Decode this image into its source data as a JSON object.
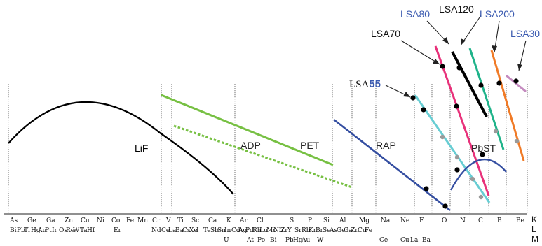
{
  "crystal_labels": {
    "lif": "LiF",
    "adp": "ADP",
    "pet": "PET",
    "rap": "RAP",
    "pbst": "PbST",
    "lsa55_prefix": "LSA",
    "lsa55_suffix": "55",
    "lsa70": "LSA70",
    "lsa80": "LSA80",
    "lsa120": "LSA120",
    "lsa200": "LSA200",
    "lsa30": "LSA30"
  },
  "line_labels": [
    "K",
    "L",
    "M"
  ],
  "row1": [
    "As",
    "Ge",
    "Ga",
    "Zn",
    "Cu",
    "Ni",
    "Co",
    "Fe",
    "Mn",
    "Cr",
    "V",
    "Ti",
    "Sc",
    "Ca",
    "K",
    "Ar",
    "Cl",
    "S",
    "P",
    "Si",
    "Al",
    "Mg",
    "Na",
    "Ne",
    "F",
    "O",
    "N",
    "C",
    "B",
    "Be"
  ],
  "row2": [
    "Bi",
    "Pb",
    "Tl",
    "Hg",
    "Au",
    "Pt",
    "Ir",
    "Os",
    "Re",
    "W",
    "Ta",
    "Hf",
    "Er",
    "Nd",
    "Ce",
    "La",
    "Ba",
    "Cs",
    "Xe",
    "I",
    "Te",
    "Sb",
    "Sn",
    "In",
    "Cd",
    "Ag",
    "Pd",
    "Rh",
    "Lu",
    "Mo",
    "Nb",
    "Zr",
    "Y",
    "Sr",
    "Rb",
    "Kr",
    "Br",
    "Se",
    "As",
    "Ge",
    "Ga",
    "Zn",
    "Cu",
    "Fe"
  ],
  "row3": [
    "U",
    "At",
    "Po",
    "Bi",
    "Pb",
    "Hg",
    "Au",
    "W",
    "Ce",
    "Cu",
    "La",
    "Ba"
  ],
  "colors": {
    "lif": "#000000",
    "pet_adp": "#77c043",
    "rap": "#344ea1",
    "lsa55": "#67cdd3",
    "lsa70": "#e8317a",
    "lsa120": "#000000",
    "lsa80": "#1fb38a",
    "lsa200": "#f07a26",
    "lsa30": "#c58bc0",
    "pbst": "#344ea1",
    "blue_label": "#3a5ab0"
  }
}
